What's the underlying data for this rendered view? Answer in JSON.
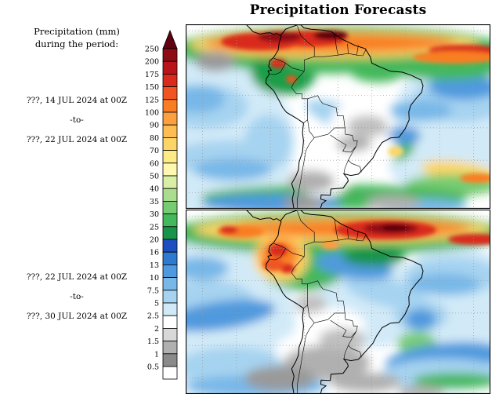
{
  "title": "Precipitation Forecasts",
  "sidebar": {
    "heading_line1": "Precipitation (mm)",
    "heading_line2": "during the period:",
    "period1": {
      "start": "???, 14 JUL 2024 at 00Z",
      "separator": "-to-",
      "end": "???, 22 JUL 2024 at 00Z"
    },
    "period2": {
      "start": "???, 22 JUL 2024 at 00Z",
      "separator": "-to-",
      "end": "???, 30 JUL 2024 at 00Z"
    }
  },
  "scale": {
    "unit": "mm",
    "ticks": [
      "250",
      "200",
      "175",
      "150",
      "125",
      "100",
      "90",
      "80",
      "70",
      "60",
      "50",
      "40",
      "35",
      "30",
      "25",
      "20",
      "16",
      "13",
      "10",
      "7.5",
      "5",
      "2.5",
      "2",
      "1.5",
      "1",
      "0.5"
    ],
    "colors": [
      "#600010",
      "#8f0b14",
      "#b81419",
      "#d92a1b",
      "#ef5422",
      "#f97e23",
      "#fb9f40",
      "#fdbd52",
      "#fdd566",
      "#feeb85",
      "#fff8b0",
      "#d9efa5",
      "#aadd8e",
      "#77cc72",
      "#44b85c",
      "#17934a",
      "#1d4fc0",
      "#2f7ad1",
      "#4f9ade",
      "#78b8e8",
      "#a6d3f0",
      "#d2eaf8",
      "#ffffff",
      "#d8d8d8",
      "#b0b0b0",
      "#8a8a8a",
      "#ffffff"
    ]
  },
  "maps": {
    "top_label": "forecast map period 1",
    "bottom_label": "forecast map period 2"
  }
}
